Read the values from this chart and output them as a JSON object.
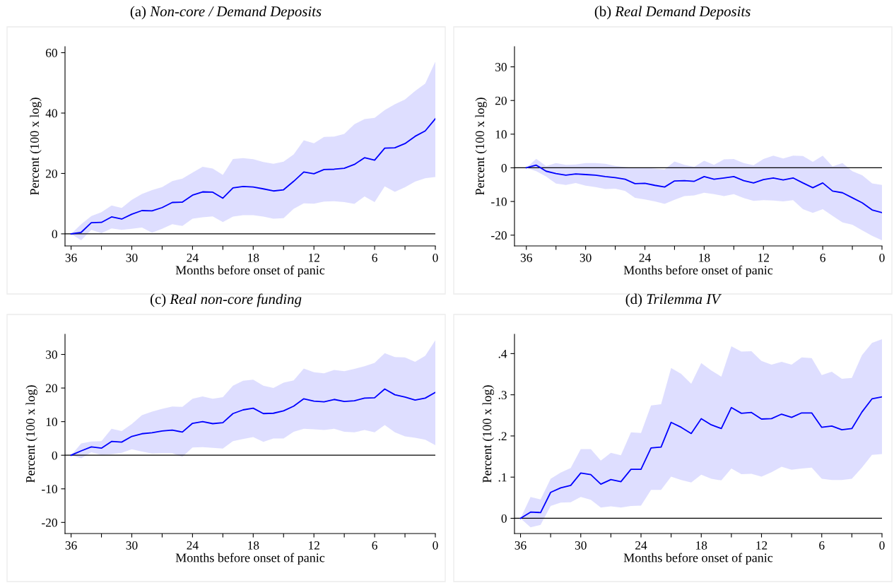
{
  "chart_data": [
    {
      "type": "line",
      "title": "(a) Non-core / Demand Deposits",
      "xlabel": "Months before onset of panic",
      "ylabel": "Percent (100 x log)",
      "x": [
        36,
        35,
        34,
        33,
        32,
        31,
        30,
        29,
        28,
        27,
        26,
        25,
        24,
        23,
        22,
        21,
        20,
        19,
        18,
        17,
        16,
        15,
        14,
        13,
        12,
        11,
        10,
        9,
        8,
        7,
        6,
        5,
        4,
        3,
        2,
        1,
        0
      ],
      "xlim": [
        36.6,
        0
      ],
      "ylim": [
        -4,
        62
      ],
      "xticks": [
        36,
        {
          "value": 33,
          "label": null
        },
        30,
        {
          "value": 27,
          "label": null
        },
        24,
        {
          "value": 21,
          "label": null
        },
        18,
        {
          "value": 15,
          "label": null
        },
        12,
        {
          "value": 9,
          "label": null
        },
        6,
        {
          "value": 3,
          "label": null
        },
        0
      ],
      "yticks": [
        0,
        20,
        40,
        60
      ],
      "ref_lines": [
        {
          "axis": "y",
          "value": 0,
          "color": "#000000"
        }
      ],
      "series": [
        {
          "color": "#0000ff",
          "values": [
            0,
            0.5,
            3.7,
            3.8,
            5.6,
            4.9,
            6.5,
            7.7,
            7.6,
            8.7,
            10.4,
            10.5,
            12.8,
            13.9,
            13.8,
            11.8,
            15.2,
            15.7,
            15.5,
            14.9,
            14.2,
            14.6,
            17.4,
            20.5,
            19.9,
            21.3,
            21.4,
            21.7,
            23,
            25.2,
            24.4,
            28.4,
            28.5,
            29.9,
            32.3,
            34.1,
            38.1
          ],
          "upper": [
            0,
            3.2,
            5.9,
            7.2,
            9.4,
            8.6,
            11.3,
            13.2,
            14.5,
            15.5,
            17.5,
            18.3,
            20.3,
            22.2,
            21.6,
            19.5,
            24.8,
            25.1,
            24.7,
            23.8,
            23.2,
            23.9,
            26.3,
            31,
            30,
            32.1,
            32.2,
            33.1,
            36.3,
            38,
            38.4,
            41,
            42.9,
            44.5,
            47.3,
            49.8,
            57
          ],
          "lower": [
            0,
            -2.1,
            1.3,
            0.2,
            1.8,
            1.3,
            1.7,
            2.1,
            0.4,
            1.7,
            3.2,
            2.6,
            5,
            5.5,
            5.8,
            3.9,
            5.7,
            6.2,
            6.2,
            5.7,
            5,
            5.2,
            8.3,
            10.1,
            10,
            10.7,
            10.8,
            10.5,
            9.9,
            12.4,
            10.5,
            15.7,
            13.9,
            15.4,
            17.3,
            18.4,
            18.8
          ]
        }
      ]
    },
    {
      "type": "line",
      "title": "(b) Real Demand Deposits",
      "xlabel": "Months before onset of panic",
      "ylabel": "Percent (100 x log)",
      "x": [
        36,
        35,
        34,
        33,
        32,
        31,
        30,
        29,
        28,
        27,
        26,
        25,
        24,
        23,
        22,
        21,
        20,
        19,
        18,
        17,
        16,
        15,
        14,
        13,
        12,
        11,
        10,
        9,
        8,
        7,
        6,
        5,
        4,
        3,
        2,
        1,
        0
      ],
      "xlim": [
        37.2,
        0
      ],
      "ylim": [
        -23.2,
        36
      ],
      "xticks": [
        36,
        {
          "value": 33,
          "label": null
        },
        30,
        {
          "value": 27,
          "label": null
        },
        24,
        {
          "value": 21,
          "label": null
        },
        18,
        {
          "value": 15,
          "label": null
        },
        12,
        {
          "value": 9,
          "label": null
        },
        6,
        {
          "value": 3,
          "label": null
        },
        0
      ],
      "yticks": [
        -20,
        -10,
        0,
        10,
        20,
        30
      ],
      "ref_lines": [
        {
          "axis": "y",
          "value": 0,
          "color": "#000000"
        }
      ],
      "series": [
        {
          "color": "#0000ff",
          "values": [
            0,
            0.8,
            -1,
            -1.7,
            -2.2,
            -1.8,
            -2,
            -2.2,
            -2.6,
            -2.9,
            -3.4,
            -4.7,
            -4.6,
            -5.2,
            -5.7,
            -3.9,
            -3.8,
            -4,
            -2.6,
            -3.4,
            -3,
            -2.6,
            -3.8,
            -4.5,
            -3.5,
            -3,
            -3.6,
            -3,
            -4.5,
            -5.9,
            -4.5,
            -6.9,
            -7.4,
            -8.9,
            -10.4,
            -12.5,
            -13.3
          ],
          "upper": [
            0,
            2.7,
            0.5,
            1.4,
            0.9,
            1,
            1.4,
            1.4,
            1.2,
            0.6,
            0.2,
            -0.1,
            0.1,
            -0.2,
            -0.5,
            1.9,
            0.9,
            0.3,
            2.1,
            0.9,
            2.5,
            2.6,
            1.4,
            0.8,
            2.6,
            3.6,
            2.8,
            3.6,
            3.5,
            1.8,
            3.6,
            0.4,
            1.4,
            -1,
            -2.2,
            -4.6,
            -5.1
          ],
          "lower": [
            0,
            -1,
            -2.6,
            -4.7,
            -5.1,
            -4.5,
            -5.3,
            -5.7,
            -6.3,
            -6.2,
            -6.9,
            -8.9,
            -9.4,
            -10,
            -10.7,
            -9.5,
            -8.4,
            -8.2,
            -7.4,
            -7.8,
            -8.4,
            -7.8,
            -9,
            -9.8,
            -9.6,
            -9.7,
            -10,
            -9.6,
            -12.3,
            -13.4,
            -12.3,
            -14.3,
            -16.2,
            -16.9,
            -18.6,
            -20.2,
            -21.5
          ]
        }
      ]
    },
    {
      "type": "line",
      "title": "(c) Real non-core funding",
      "xlabel": "Months before onset of panic",
      "ylabel": "Percent (100 x log)",
      "x": [
        36,
        35,
        34,
        33,
        32,
        31,
        30,
        29,
        28,
        27,
        26,
        25,
        24,
        23,
        22,
        21,
        20,
        19,
        18,
        17,
        16,
        15,
        14,
        13,
        12,
        11,
        10,
        9,
        8,
        7,
        6,
        5,
        4,
        3,
        2,
        1,
        0
      ],
      "xlim": [
        36.6,
        0
      ],
      "ylim": [
        -23.3,
        36
      ],
      "xticks": [
        36,
        {
          "value": 33,
          "label": null
        },
        30,
        {
          "value": 27,
          "label": null
        },
        24,
        {
          "value": 21,
          "label": null
        },
        18,
        {
          "value": 15,
          "label": null
        },
        12,
        {
          "value": 9,
          "label": null
        },
        6,
        {
          "value": 3,
          "label": null
        },
        0
      ],
      "yticks": [
        -20,
        -10,
        0,
        10,
        20,
        30
      ],
      "ref_lines": [
        {
          "axis": "y",
          "value": 0,
          "color": "#000000"
        }
      ],
      "series": [
        {
          "color": "#0000ff",
          "values": [
            0,
            1.3,
            2.5,
            2.1,
            4.1,
            3.9,
            5.6,
            6.4,
            6.7,
            7.2,
            7.5,
            6.9,
            9.5,
            10,
            9.4,
            9.7,
            12.4,
            13.5,
            14,
            12.4,
            12.5,
            13.2,
            14.6,
            16.8,
            16.1,
            15.9,
            16.6,
            16,
            16.2,
            17,
            17.1,
            19.7,
            18,
            17.3,
            16.4,
            17,
            18.7
          ],
          "upper": [
            0,
            3.5,
            4.1,
            4.2,
            7.9,
            7.2,
            9.3,
            11.9,
            13,
            13.8,
            14.5,
            14.4,
            16.8,
            17.5,
            16.8,
            17.3,
            20.7,
            22.2,
            22.5,
            20.7,
            20,
            21.6,
            22.3,
            25.8,
            24.7,
            24.4,
            25.4,
            25,
            25.7,
            26.5,
            27.5,
            30.4,
            29.2,
            29.1,
            27.8,
            29.6,
            34.2
          ],
          "lower": [
            0,
            -0.9,
            0.9,
            0.1,
            0.3,
            0.7,
            1.8,
            1.1,
            0.5,
            0.6,
            0.6,
            -0.5,
            2.3,
            2.4,
            2.2,
            2,
            4.2,
            4.8,
            5.4,
            4,
            5,
            5,
            7,
            7.9,
            7.7,
            7.5,
            7.9,
            7,
            6.8,
            7.5,
            6.8,
            9,
            6.8,
            5.6,
            5.2,
            4.6,
            3
          ]
        }
      ]
    },
    {
      "type": "line",
      "title": "(d) Trilemma IV",
      "xlabel": "Months before onset of panic",
      "ylabel": "Percent (100 x log)",
      "x": [
        36,
        35,
        34,
        33,
        32,
        31,
        30,
        29,
        28,
        27,
        26,
        25,
        24,
        23,
        22,
        21,
        20,
        19,
        18,
        17,
        16,
        15,
        14,
        13,
        12,
        11,
        10,
        9,
        8,
        7,
        6,
        5,
        4,
        3,
        2,
        1,
        0
      ],
      "xlim": [
        36.6,
        0
      ],
      "ylim": [
        -0.037,
        0.447
      ],
      "xticks": [
        36,
        {
          "value": 33,
          "label": null
        },
        30,
        {
          "value": 27,
          "label": null
        },
        24,
        {
          "value": 21,
          "label": null
        },
        18,
        {
          "value": 15,
          "label": null
        },
        12,
        {
          "value": 9,
          "label": null
        },
        6,
        {
          "value": 3,
          "label": null
        },
        0
      ],
      "yticks": [
        0,
        {
          "value": 0.1,
          "label": ".1"
        },
        {
          "value": 0.2,
          "label": ".2"
        },
        {
          "value": 0.3,
          "label": ".3"
        },
        {
          "value": 0.4,
          "label": ".4"
        }
      ],
      "ref_lines": [
        {
          "axis": "y",
          "value": 0,
          "color": "#000000"
        }
      ],
      "series": [
        {
          "color": "#0000ff",
          "values": [
            0,
            0.015,
            0.014,
            0.063,
            0.074,
            0.08,
            0.11,
            0.106,
            0.083,
            0.094,
            0.089,
            0.119,
            0.119,
            0.171,
            0.173,
            0.233,
            0.221,
            0.206,
            0.242,
            0.227,
            0.218,
            0.269,
            0.255,
            0.257,
            0.241,
            0.242,
            0.253,
            0.245,
            0.256,
            0.256,
            0.221,
            0.224,
            0.215,
            0.218,
            0.258,
            0.29,
            0.295
          ],
          "upper": [
            0,
            0.052,
            0.046,
            0.096,
            0.111,
            0.122,
            0.168,
            0.168,
            0.14,
            0.159,
            0.153,
            0.209,
            0.207,
            0.274,
            0.277,
            0.365,
            0.351,
            0.327,
            0.377,
            0.359,
            0.344,
            0.418,
            0.405,
            0.406,
            0.382,
            0.373,
            0.38,
            0.373,
            0.391,
            0.389,
            0.348,
            0.356,
            0.339,
            0.341,
            0.396,
            0.426,
            0.435
          ],
          "lower": [
            0,
            -0.022,
            -0.016,
            0.03,
            0.038,
            0.039,
            0.052,
            0.045,
            0.026,
            0.029,
            0.026,
            0.03,
            0.031,
            0.069,
            0.069,
            0.101,
            0.093,
            0.087,
            0.106,
            0.096,
            0.092,
            0.121,
            0.107,
            0.108,
            0.101,
            0.112,
            0.125,
            0.118,
            0.121,
            0.123,
            0.096,
            0.093,
            0.093,
            0.096,
            0.123,
            0.154,
            0.156
          ]
        }
      ]
    }
  ]
}
